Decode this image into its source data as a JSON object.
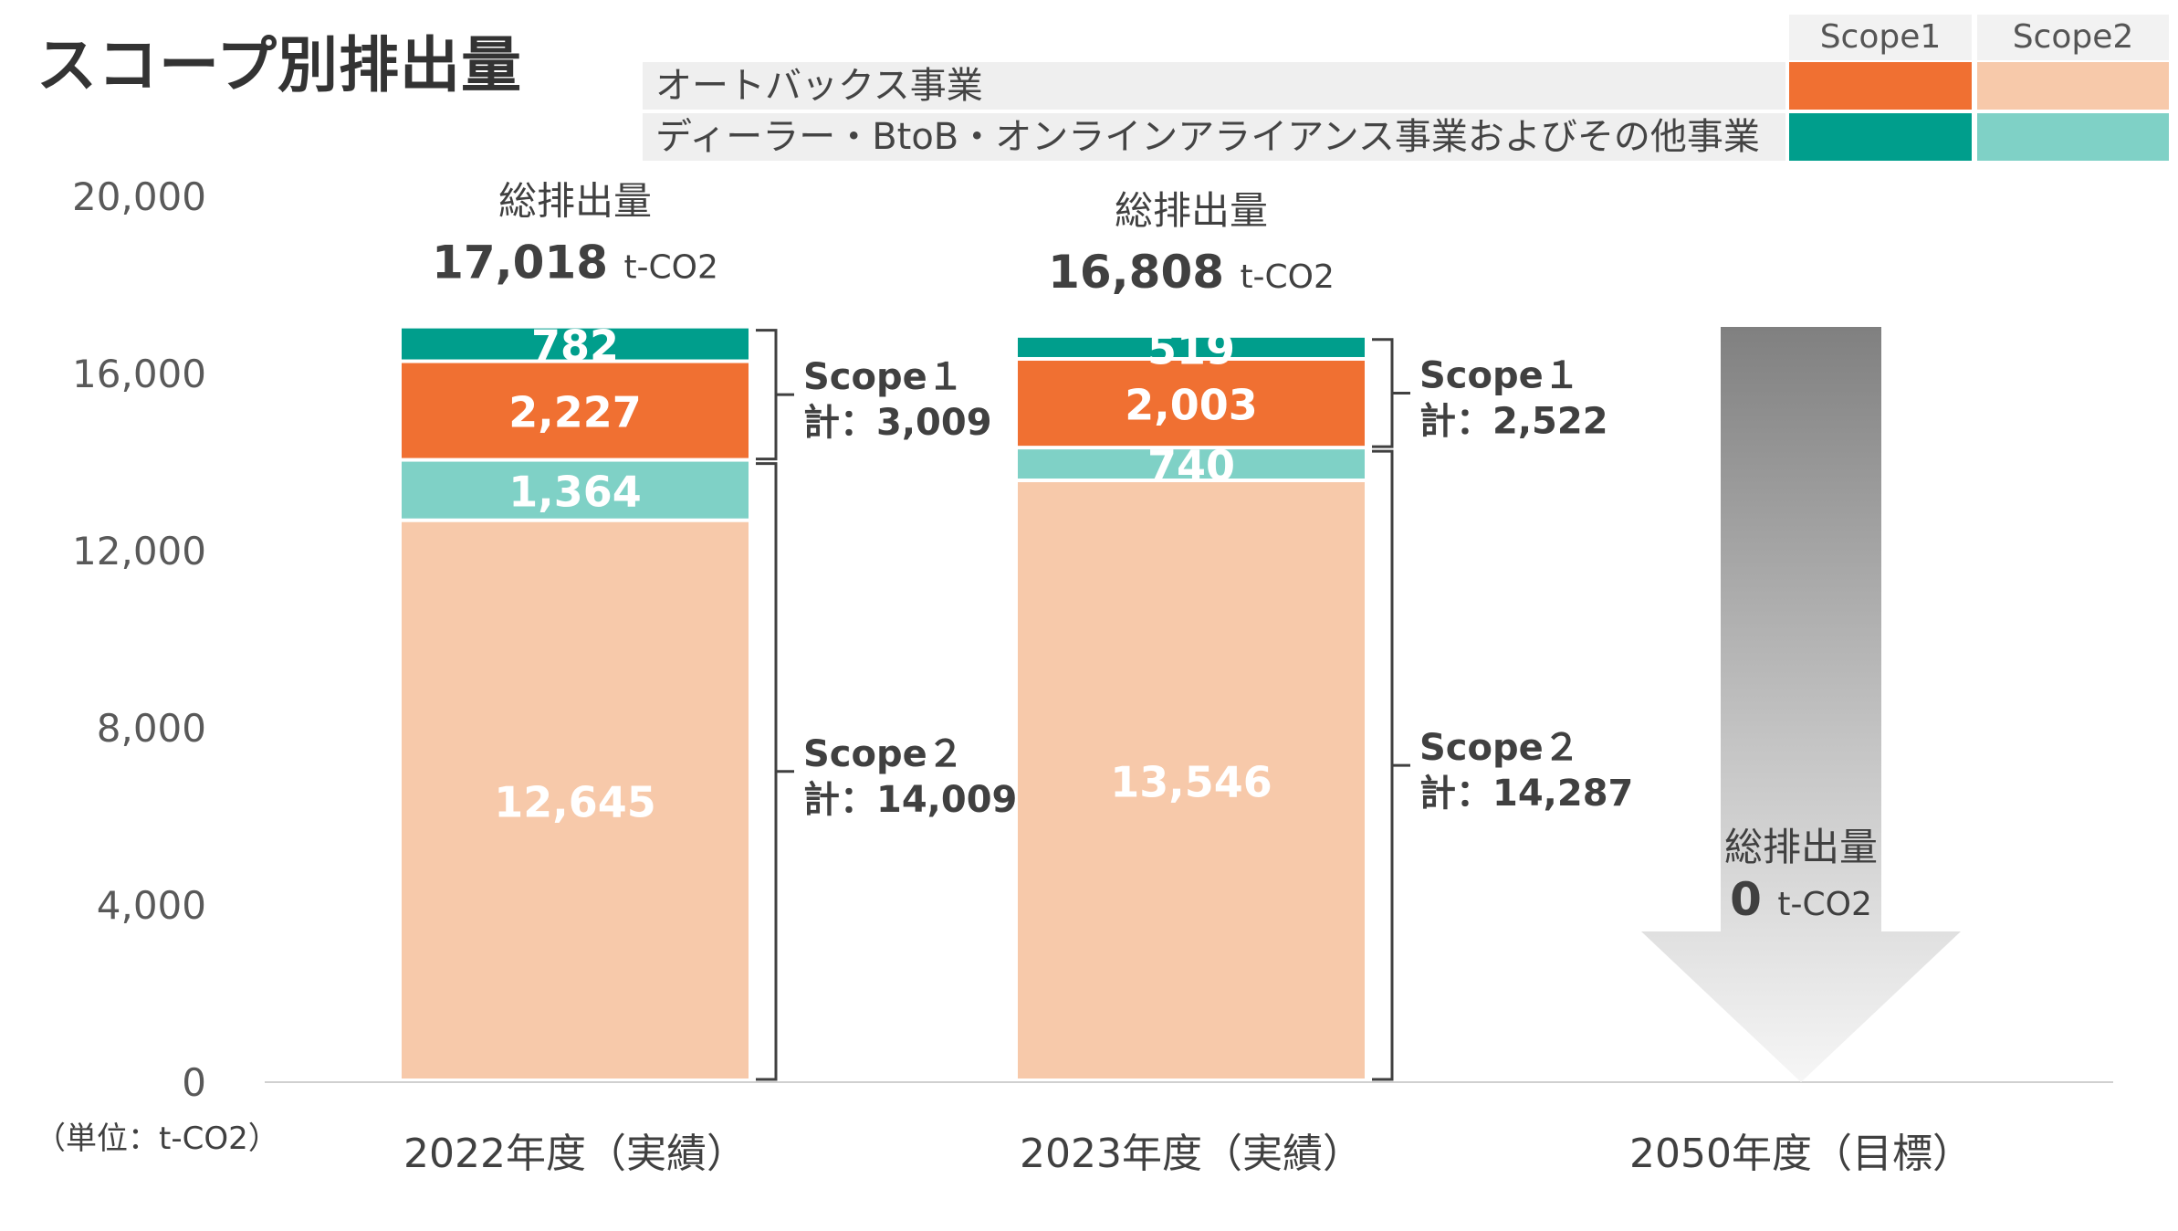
{
  "page": {
    "title": "スコープ別排出量"
  },
  "legend": {
    "headers": [
      "Scope1",
      "Scope2"
    ],
    "rows": [
      {
        "label": "オートバックス事業",
        "scope1_color": "#f07032",
        "scope2_color": "#f7c9aa"
      },
      {
        "label": "ディーラー・BtoB・オンラインアライアンス事業およびその他事業",
        "scope1_color": "#009e8c",
        "scope2_color": "#7fd1c6"
      }
    ]
  },
  "chart_data": {
    "type": "bar",
    "stacked": true,
    "categories": [
      "2022年度（実績）",
      "2023年度（実績）",
      "2050年度（目標）"
    ],
    "series": [
      {
        "name": "Scope2 オートバックス事業",
        "color": "#f7c9aa",
        "values": [
          12645,
          13546,
          0
        ],
        "labels": [
          "12,645",
          "13,546",
          ""
        ]
      },
      {
        "name": "Scope2 ディーラー・BtoB・オンラインアライアンス事業およびその他事業",
        "color": "#7fd1c6",
        "values": [
          1364,
          740,
          0
        ],
        "labels": [
          "1,364",
          "740",
          ""
        ]
      },
      {
        "name": "Scope1 オートバックス事業",
        "color": "#f07032",
        "values": [
          2227,
          2003,
          0
        ],
        "labels": [
          "2,227",
          "2,003",
          ""
        ]
      },
      {
        "name": "Scope1 ディーラー・BtoB・オンラインアライアンス事業およびその他事業",
        "color": "#009e8c",
        "values": [
          782,
          519,
          0
        ],
        "labels": [
          "782",
          "519",
          ""
        ]
      }
    ],
    "ylim": [
      0,
      20000
    ],
    "yticks": [
      0,
      4000,
      8000,
      12000,
      16000,
      20000
    ],
    "ytick_labels": [
      "0",
      "4,000",
      "8,000",
      "12,000",
      "16,000",
      "20,000"
    ],
    "unit_label": "（単位：t-CO2）",
    "totals": [
      {
        "label": "総排出量",
        "value": "17,018",
        "unit": "t-CO2"
      },
      {
        "label": "総排出量",
        "value": "16,808",
        "unit": "t-CO2"
      },
      {
        "label": "総排出量",
        "value": "0",
        "unit": "t-CO2"
      }
    ],
    "brackets": [
      {
        "scope1_name": "Scope１",
        "scope1_total": "計：3,009",
        "scope2_name": "Scope２",
        "scope2_total": "計：14,009"
      },
      {
        "scope1_name": "Scope１",
        "scope1_total": "計：2,522",
        "scope2_name": "Scope２",
        "scope2_total": "計：14,287"
      }
    ],
    "grid": false,
    "legend_position": "top-right"
  }
}
